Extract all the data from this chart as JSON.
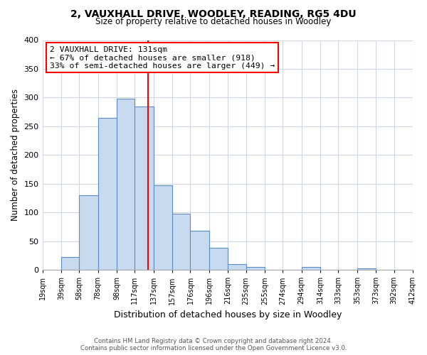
{
  "title": "2, VAUXHALL DRIVE, WOODLEY, READING, RG5 4DU",
  "subtitle": "Size of property relative to detached houses in Woodley",
  "xlabel": "Distribution of detached houses by size in Woodley",
  "ylabel": "Number of detached properties",
  "bar_color": "#c8daf0",
  "bar_edge_color": "#5b8cc8",
  "bin_edges": [
    19,
    39,
    58,
    78,
    98,
    117,
    137,
    157,
    176,
    196,
    216,
    235,
    255,
    274,
    294,
    314,
    333,
    353,
    373,
    392,
    412
  ],
  "bin_labels": [
    "19sqm",
    "39sqm",
    "58sqm",
    "78sqm",
    "98sqm",
    "117sqm",
    "137sqm",
    "157sqm",
    "176sqm",
    "196sqm",
    "216sqm",
    "235sqm",
    "255sqm",
    "274sqm",
    "294sqm",
    "314sqm",
    "333sqm",
    "353sqm",
    "373sqm",
    "392sqm",
    "412sqm"
  ],
  "bar_heights": [
    0,
    22,
    130,
    265,
    298,
    285,
    147,
    98,
    68,
    38,
    10,
    5,
    0,
    0,
    5,
    0,
    0,
    3,
    0,
    0
  ],
  "ylim": [
    0,
    400
  ],
  "yticks": [
    0,
    50,
    100,
    150,
    200,
    250,
    300,
    350,
    400
  ],
  "property_line_x": 131,
  "annotation_title": "2 VAUXHALL DRIVE: 131sqm",
  "annotation_line1": "← 67% of detached houses are smaller (918)",
  "annotation_line2": "33% of semi-detached houses are larger (449) →",
  "footer_line1": "Contains HM Land Registry data © Crown copyright and database right 2024.",
  "footer_line2": "Contains public sector information licensed under the Open Government Licence v3.0.",
  "background_color": "#ffffff",
  "grid_color": "#d0d8e8"
}
